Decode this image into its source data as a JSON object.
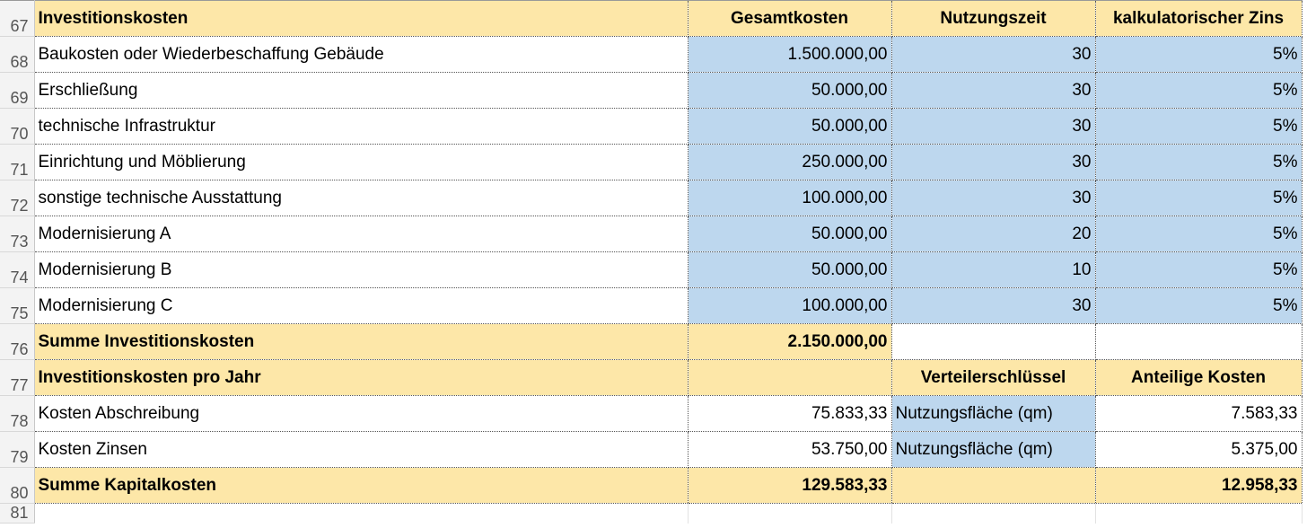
{
  "rows": [
    {
      "n": "67",
      "a": "Investitionskosten",
      "b": "Gesamtkosten",
      "c": "Nutzungszeit",
      "d": "kalkulatorischer Zins"
    },
    {
      "n": "68",
      "a": "Baukosten oder Wiederbeschaffung Gebäude",
      "b": "1.500.000,00",
      "c": "30",
      "d": "5%"
    },
    {
      "n": "69",
      "a": "Erschließung",
      "b": "50.000,00",
      "c": "30",
      "d": "5%"
    },
    {
      "n": "70",
      "a": "technische Infrastruktur",
      "b": "50.000,00",
      "c": "30",
      "d": "5%"
    },
    {
      "n": "71",
      "a": "Einrichtung und Möblierung",
      "b": "250.000,00",
      "c": "30",
      "d": "5%"
    },
    {
      "n": "72",
      "a": "sonstige technische Ausstattung",
      "b": "100.000,00",
      "c": "30",
      "d": "5%"
    },
    {
      "n": "73",
      "a": "Modernisierung A",
      "b": "50.000,00",
      "c": "20",
      "d": "5%"
    },
    {
      "n": "74",
      "a": "Modernisierung B",
      "b": "50.000,00",
      "c": "10",
      "d": "5%"
    },
    {
      "n": "75",
      "a": "Modernisierung C",
      "b": "100.000,00",
      "c": "30",
      "d": "5%"
    },
    {
      "n": "76",
      "a": "Summe Investitionskosten",
      "b": "2.150.000,00",
      "c": "",
      "d": ""
    },
    {
      "n": "77",
      "a": "Investitionskosten pro Jahr",
      "b": "",
      "c": "Verteilerschlüssel",
      "d": "Anteilige Kosten"
    },
    {
      "n": "78",
      "a": "Kosten Abschreibung",
      "b": "75.833,33",
      "c": "Nutzungsfläche (qm)",
      "d": "7.583,33"
    },
    {
      "n": "79",
      "a": "Kosten Zinsen",
      "b": "53.750,00",
      "c": "Nutzungsfläche (qm)",
      "d": "5.375,00"
    },
    {
      "n": "80",
      "a": "Summe Kapitalkosten",
      "b": "129.583,33",
      "c": "",
      "d": "12.958,33"
    },
    {
      "n": "81",
      "a": "",
      "b": "",
      "c": "",
      "d": ""
    }
  ],
  "colors": {
    "header_fill": "#fde7a8",
    "input_fill": "#bdd7ee",
    "row_header_fill": "#f3f3f3"
  }
}
